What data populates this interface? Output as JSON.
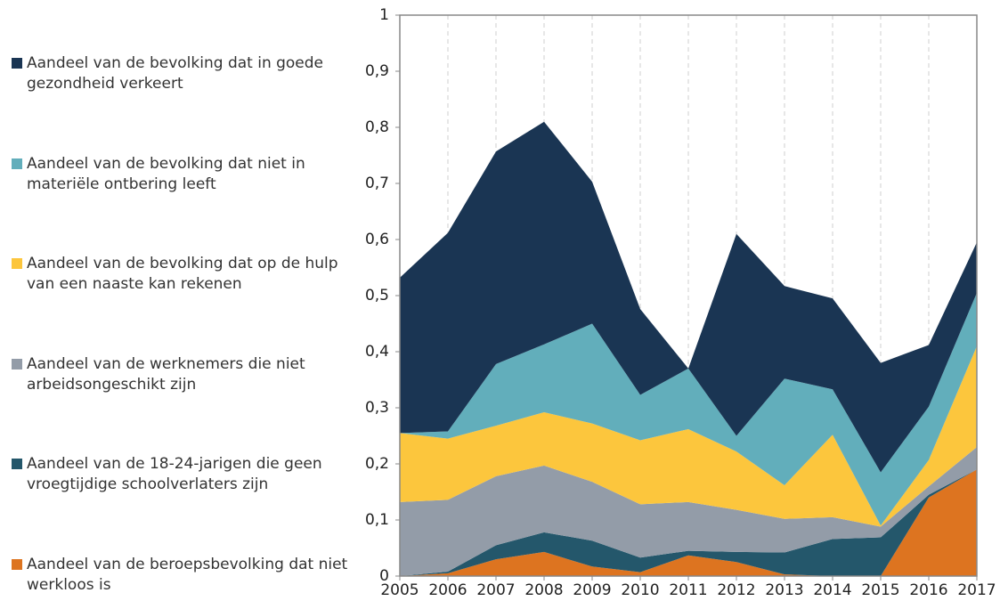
{
  "chart_data": {
    "type": "stacked_area",
    "x": [
      2005,
      2006,
      2007,
      2008,
      2009,
      2010,
      2011,
      2012,
      2013,
      2014,
      2015,
      2016,
      2017
    ],
    "xlim": [
      2005,
      2017
    ],
    "xticks": [
      2005,
      2006,
      2007,
      2008,
      2009,
      2010,
      2011,
      2012,
      2013,
      2014,
      2015,
      2016,
      2017
    ],
    "ylim": [
      0,
      1
    ],
    "yticks": [
      0,
      {
        "value": 0.1,
        "label": "0,1"
      },
      {
        "value": 0.2,
        "label": "0,2"
      },
      {
        "value": 0.3,
        "label": "0,3"
      },
      {
        "value": 0.4,
        "label": "0,4"
      },
      {
        "value": 0.5,
        "label": "0,5"
      },
      {
        "value": 0.6,
        "label": "0,6"
      },
      {
        "value": 0.7,
        "label": "0,7"
      },
      {
        "value": 0.8,
        "label": "0,8"
      },
      {
        "value": 0.9,
        "label": "0,9"
      },
      1
    ],
    "grid": "x",
    "legend": "left",
    "series": [
      {
        "name": "Aandeel van de beroepsbevolking dat niet werkloos is",
        "color": "#dd7420",
        "values": [
          0,
          0.005,
          0.03,
          0.043,
          0.017,
          0.007,
          0.037,
          0.025,
          0.003,
          0,
          0,
          0.14,
          0.19
        ]
      },
      {
        "name": "Aandeel van de 18-24-jarigen die geen vroegtijdige schoolverlaters zijn",
        "color": "#24576b",
        "values": [
          0,
          0.003,
          0.025,
          0.035,
          0.046,
          0.026,
          0.008,
          0.018,
          0.039,
          0.066,
          0.069,
          0.005,
          0
        ]
      },
      {
        "name": "Aandeel van de werknemers die niet arbeidsongeschikt zijn",
        "color": "#939ca8",
        "values": [
          0.132,
          0.128,
          0.123,
          0.119,
          0.105,
          0.095,
          0.087,
          0.075,
          0.06,
          0.039,
          0.019,
          0.015,
          0.04
        ]
      },
      {
        "name": "Aandeel van de bevolking dat op de hulp van een naaste kan rekenen",
        "color": "#fcc63d",
        "values": [
          0.123,
          0.109,
          0.09,
          0.095,
          0.104,
          0.114,
          0.13,
          0.104,
          0.06,
          0.147,
          0.002,
          0.047,
          0.18
        ]
      },
      {
        "name": "Aandeel van de bevolking dat niet in materiële ontbering leeft",
        "color": "#62aebb",
        "values": [
          0,
          0.013,
          0.11,
          0.121,
          0.178,
          0.081,
          0.108,
          0.028,
          0.19,
          0.081,
          0.095,
          0.095,
          0.095
        ]
      },
      {
        "name": "Aandeel van de bevolking dat in goede gezondheid verkeert",
        "color": "#1a3553",
        "values": [
          0.277,
          0.354,
          0.379,
          0.397,
          0.253,
          0.153,
          0,
          0.36,
          0.165,
          0.162,
          0.195,
          0.11,
          0.09
        ]
      }
    ]
  }
}
